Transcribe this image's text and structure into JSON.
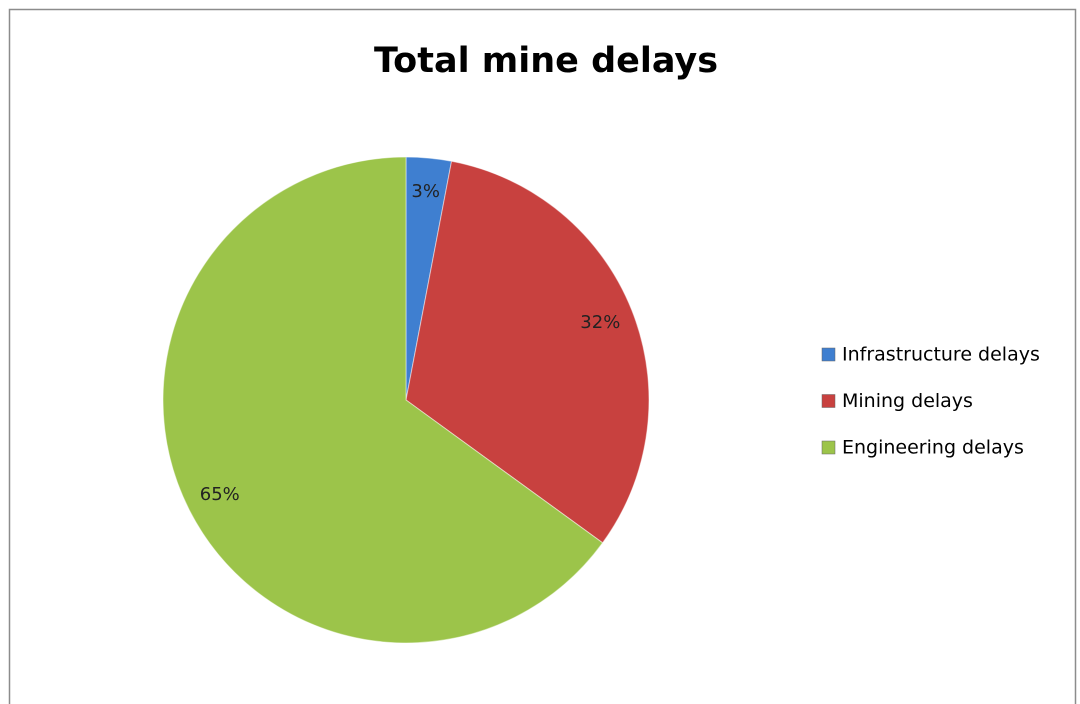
{
  "chart_data": {
    "type": "pie",
    "title": "Total mine delays",
    "categories": [
      "Infrastructure delays",
      "Mining delays",
      "Engineering delays"
    ],
    "values": [
      3,
      32,
      65
    ],
    "value_labels": [
      "3%",
      "32%",
      "65%"
    ],
    "colors": [
      "#3f7fd0",
      "#c8413f",
      "#9cc44a"
    ],
    "legend": "right"
  }
}
